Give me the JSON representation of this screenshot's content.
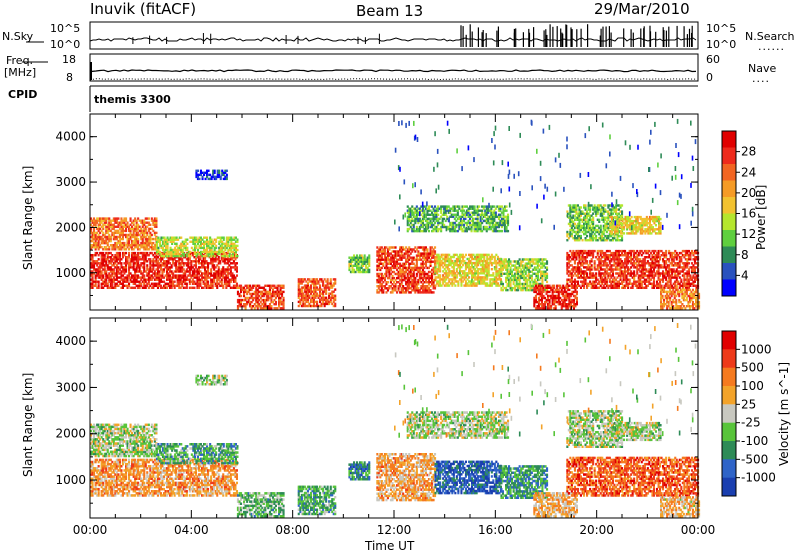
{
  "header": {
    "station": "Inuvik (fitACF)",
    "beam": "Beam 13",
    "date": "29/Mar/2010"
  },
  "panels": {
    "nsky": {
      "label": "N.Sky",
      "left_ticks": [
        "10^5",
        "10^0"
      ],
      "right_ticks": [
        "10^5",
        "10^0"
      ],
      "right_label": "N.Search",
      "right_legend": "......"
    },
    "freq": {
      "label_top": "Freq.",
      "label_bottom": "[MHz]",
      "left_ticks": [
        "18",
        "8"
      ],
      "right_ticks": [
        "60",
        "0"
      ],
      "right_label": "Nave",
      "right_legend": "...."
    },
    "cpid": {
      "label": "CPID",
      "program": "themis 3300"
    }
  },
  "chart_data": [
    {
      "type": "heatmap",
      "title": "",
      "xlabel": "Time UT",
      "ylabel": "Slant Range [km]",
      "x_ticks": [
        "00:00",
        "04:00",
        "08:00",
        "12:00",
        "16:00",
        "20:00",
        "00:00"
      ],
      "y_ticks": [
        "1000",
        "2000",
        "3000",
        "4000"
      ],
      "xlim_hours": [
        0,
        24
      ],
      "ylim_km": [
        180,
        4500
      ],
      "colorbar": {
        "label": "Power [dB]",
        "ticks": [
          "4",
          "8",
          "12",
          "16",
          "20",
          "24",
          "28"
        ],
        "colors": [
          "#0000ff",
          "#2a52be",
          "#2e8b57",
          "#5fcf3f",
          "#b5e62e",
          "#f2c230",
          "#f59b26",
          "#f26522",
          "#ee2a1c",
          "#e00000"
        ]
      },
      "echo_regions": [
        {
          "t0": 0.0,
          "t1": 5.8,
          "r0": 650,
          "r1": 1450,
          "level": 0.92
        },
        {
          "t0": 0.0,
          "t1": 2.6,
          "r0": 1500,
          "r1": 2200,
          "level": 0.75
        },
        {
          "t0": 2.6,
          "t1": 5.8,
          "r0": 1350,
          "r1": 1800,
          "level": 0.45
        },
        {
          "t0": 4.1,
          "t1": 5.4,
          "r0": 3050,
          "r1": 3250,
          "level": 0.08
        },
        {
          "t0": 5.8,
          "t1": 7.6,
          "r0": 200,
          "r1": 700,
          "level": 0.85
        },
        {
          "t0": 8.2,
          "t1": 9.7,
          "r0": 250,
          "r1": 850,
          "level": 0.8
        },
        {
          "t0": 10.2,
          "t1": 11.0,
          "r0": 1000,
          "r1": 1400,
          "level": 0.35
        },
        {
          "t0": 11.3,
          "t1": 13.6,
          "r0": 550,
          "r1": 1550,
          "level": 0.85
        },
        {
          "t0": 13.6,
          "t1": 16.2,
          "r0": 700,
          "r1": 1400,
          "level": 0.55
        },
        {
          "t0": 12.5,
          "t1": 16.5,
          "r0": 1900,
          "r1": 2450,
          "level": 0.3
        },
        {
          "t0": 16.2,
          "t1": 18.0,
          "r0": 600,
          "r1": 1300,
          "level": 0.4
        },
        {
          "t0": 17.5,
          "t1": 19.2,
          "r0": 200,
          "r1": 700,
          "level": 0.92
        },
        {
          "t0": 18.8,
          "t1": 24.0,
          "r0": 650,
          "r1": 1500,
          "level": 0.88
        },
        {
          "t0": 18.8,
          "t1": 21.0,
          "r0": 1700,
          "r1": 2500,
          "level": 0.35
        },
        {
          "t0": 20.5,
          "t1": 22.5,
          "r0": 1850,
          "r1": 2250,
          "level": 0.55
        },
        {
          "t0": 22.5,
          "t1": 24.0,
          "r0": 200,
          "r1": 650,
          "level": 0.7
        }
      ]
    },
    {
      "type": "heatmap",
      "title": "",
      "xlabel": "Time UT",
      "ylabel": "Slant Range [km]",
      "x_ticks": [
        "00:00",
        "04:00",
        "08:00",
        "12:00",
        "16:00",
        "20:00",
        "00:00"
      ],
      "y_ticks": [
        "1000",
        "2000",
        "3000",
        "4000"
      ],
      "xlim_hours": [
        0,
        24
      ],
      "ylim_km": [
        180,
        4500
      ],
      "colorbar": {
        "label": "Velocity [m s^-1]",
        "ticks": [
          "1000",
          "500",
          "100",
          "25",
          "-25",
          "-100",
          "-500",
          "-1000"
        ],
        "colors": [
          "#1a3fb0",
          "#2f64c8",
          "#2e8b57",
          "#58c43a",
          "#c8c8c0",
          "#f3a32a",
          "#f57a1f",
          "#ee3a1a",
          "#e00000"
        ]
      },
      "echo_regions": [
        {
          "t0": 0.0,
          "t1": 5.8,
          "r0": 650,
          "r1": 1450,
          "level": 0.68
        },
        {
          "t0": 0.0,
          "t1": 2.6,
          "r0": 1500,
          "r1": 2200,
          "level": 0.45
        },
        {
          "t0": 2.6,
          "t1": 5.8,
          "r0": 1350,
          "r1": 1800,
          "level": 0.3
        },
        {
          "t0": 4.1,
          "t1": 5.4,
          "r0": 3050,
          "r1": 3250,
          "level": 0.45
        },
        {
          "t0": 5.8,
          "t1": 7.6,
          "r0": 200,
          "r1": 700,
          "level": 0.35
        },
        {
          "t0": 8.2,
          "t1": 9.7,
          "r0": 250,
          "r1": 850,
          "level": 0.3
        },
        {
          "t0": 10.2,
          "t1": 11.0,
          "r0": 1000,
          "r1": 1400,
          "level": 0.2
        },
        {
          "t0": 11.3,
          "t1": 13.6,
          "r0": 550,
          "r1": 1550,
          "level": 0.65
        },
        {
          "t0": 13.6,
          "t1": 16.2,
          "r0": 700,
          "r1": 1400,
          "level": 0.1
        },
        {
          "t0": 12.5,
          "t1": 16.5,
          "r0": 1900,
          "r1": 2450,
          "level": 0.45
        },
        {
          "t0": 16.2,
          "t1": 18.0,
          "r0": 600,
          "r1": 1300,
          "level": 0.25
        },
        {
          "t0": 17.5,
          "t1": 19.2,
          "r0": 200,
          "r1": 700,
          "level": 0.62
        },
        {
          "t0": 18.8,
          "t1": 24.0,
          "r0": 650,
          "r1": 1500,
          "level": 0.82
        },
        {
          "t0": 18.8,
          "t1": 21.0,
          "r0": 1700,
          "r1": 2500,
          "level": 0.45
        },
        {
          "t0": 20.5,
          "t1": 22.5,
          "r0": 1850,
          "r1": 2250,
          "level": 0.45
        },
        {
          "t0": 22.5,
          "t1": 24.0,
          "r0": 200,
          "r1": 650,
          "level": 0.6
        }
      ]
    }
  ]
}
